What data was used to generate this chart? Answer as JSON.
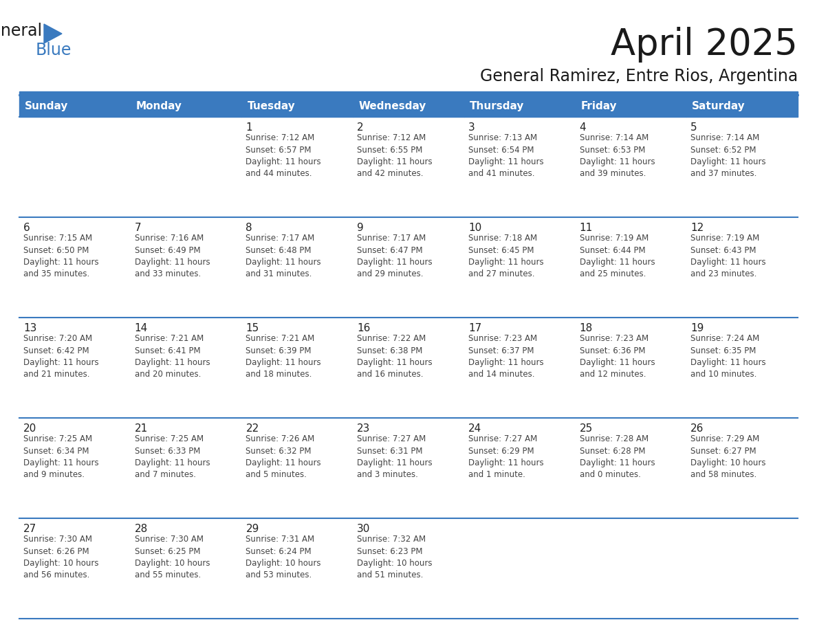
{
  "title": "April 2025",
  "subtitle": "General Ramirez, Entre Rios, Argentina",
  "header_color": "#3a7abf",
  "header_text_color": "#ffffff",
  "border_color": "#3a7abf",
  "cell_bg": "#ffffff",
  "text_color": "#222222",
  "info_color": "#444444",
  "days_of_week": [
    "Sunday",
    "Monday",
    "Tuesday",
    "Wednesday",
    "Thursday",
    "Friday",
    "Saturday"
  ],
  "weeks": [
    [
      {
        "day": "",
        "info": ""
      },
      {
        "day": "",
        "info": ""
      },
      {
        "day": "1",
        "info": "Sunrise: 7:12 AM\nSunset: 6:57 PM\nDaylight: 11 hours\nand 44 minutes."
      },
      {
        "day": "2",
        "info": "Sunrise: 7:12 AM\nSunset: 6:55 PM\nDaylight: 11 hours\nand 42 minutes."
      },
      {
        "day": "3",
        "info": "Sunrise: 7:13 AM\nSunset: 6:54 PM\nDaylight: 11 hours\nand 41 minutes."
      },
      {
        "day": "4",
        "info": "Sunrise: 7:14 AM\nSunset: 6:53 PM\nDaylight: 11 hours\nand 39 minutes."
      },
      {
        "day": "5",
        "info": "Sunrise: 7:14 AM\nSunset: 6:52 PM\nDaylight: 11 hours\nand 37 minutes."
      }
    ],
    [
      {
        "day": "6",
        "info": "Sunrise: 7:15 AM\nSunset: 6:50 PM\nDaylight: 11 hours\nand 35 minutes."
      },
      {
        "day": "7",
        "info": "Sunrise: 7:16 AM\nSunset: 6:49 PM\nDaylight: 11 hours\nand 33 minutes."
      },
      {
        "day": "8",
        "info": "Sunrise: 7:17 AM\nSunset: 6:48 PM\nDaylight: 11 hours\nand 31 minutes."
      },
      {
        "day": "9",
        "info": "Sunrise: 7:17 AM\nSunset: 6:47 PM\nDaylight: 11 hours\nand 29 minutes."
      },
      {
        "day": "10",
        "info": "Sunrise: 7:18 AM\nSunset: 6:45 PM\nDaylight: 11 hours\nand 27 minutes."
      },
      {
        "day": "11",
        "info": "Sunrise: 7:19 AM\nSunset: 6:44 PM\nDaylight: 11 hours\nand 25 minutes."
      },
      {
        "day": "12",
        "info": "Sunrise: 7:19 AM\nSunset: 6:43 PM\nDaylight: 11 hours\nand 23 minutes."
      }
    ],
    [
      {
        "day": "13",
        "info": "Sunrise: 7:20 AM\nSunset: 6:42 PM\nDaylight: 11 hours\nand 21 minutes."
      },
      {
        "day": "14",
        "info": "Sunrise: 7:21 AM\nSunset: 6:41 PM\nDaylight: 11 hours\nand 20 minutes."
      },
      {
        "day": "15",
        "info": "Sunrise: 7:21 AM\nSunset: 6:39 PM\nDaylight: 11 hours\nand 18 minutes."
      },
      {
        "day": "16",
        "info": "Sunrise: 7:22 AM\nSunset: 6:38 PM\nDaylight: 11 hours\nand 16 minutes."
      },
      {
        "day": "17",
        "info": "Sunrise: 7:23 AM\nSunset: 6:37 PM\nDaylight: 11 hours\nand 14 minutes."
      },
      {
        "day": "18",
        "info": "Sunrise: 7:23 AM\nSunset: 6:36 PM\nDaylight: 11 hours\nand 12 minutes."
      },
      {
        "day": "19",
        "info": "Sunrise: 7:24 AM\nSunset: 6:35 PM\nDaylight: 11 hours\nand 10 minutes."
      }
    ],
    [
      {
        "day": "20",
        "info": "Sunrise: 7:25 AM\nSunset: 6:34 PM\nDaylight: 11 hours\nand 9 minutes."
      },
      {
        "day": "21",
        "info": "Sunrise: 7:25 AM\nSunset: 6:33 PM\nDaylight: 11 hours\nand 7 minutes."
      },
      {
        "day": "22",
        "info": "Sunrise: 7:26 AM\nSunset: 6:32 PM\nDaylight: 11 hours\nand 5 minutes."
      },
      {
        "day": "23",
        "info": "Sunrise: 7:27 AM\nSunset: 6:31 PM\nDaylight: 11 hours\nand 3 minutes."
      },
      {
        "day": "24",
        "info": "Sunrise: 7:27 AM\nSunset: 6:29 PM\nDaylight: 11 hours\nand 1 minute."
      },
      {
        "day": "25",
        "info": "Sunrise: 7:28 AM\nSunset: 6:28 PM\nDaylight: 11 hours\nand 0 minutes."
      },
      {
        "day": "26",
        "info": "Sunrise: 7:29 AM\nSunset: 6:27 PM\nDaylight: 10 hours\nand 58 minutes."
      }
    ],
    [
      {
        "day": "27",
        "info": "Sunrise: 7:30 AM\nSunset: 6:26 PM\nDaylight: 10 hours\nand 56 minutes."
      },
      {
        "day": "28",
        "info": "Sunrise: 7:30 AM\nSunset: 6:25 PM\nDaylight: 10 hours\nand 55 minutes."
      },
      {
        "day": "29",
        "info": "Sunrise: 7:31 AM\nSunset: 6:24 PM\nDaylight: 10 hours\nand 53 minutes."
      },
      {
        "day": "30",
        "info": "Sunrise: 7:32 AM\nSunset: 6:23 PM\nDaylight: 10 hours\nand 51 minutes."
      },
      {
        "day": "",
        "info": ""
      },
      {
        "day": "",
        "info": ""
      },
      {
        "day": "",
        "info": ""
      }
    ]
  ]
}
